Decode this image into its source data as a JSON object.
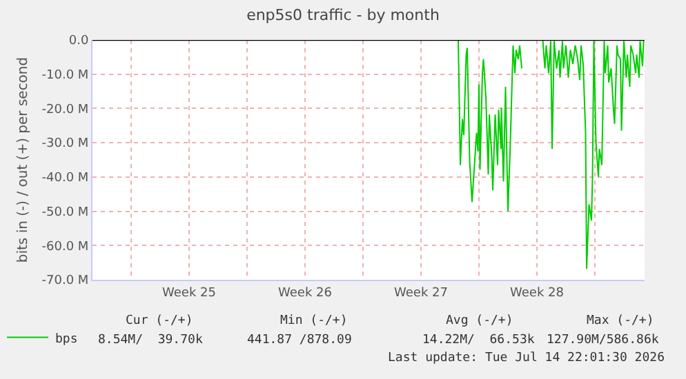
{
  "chart_data": {
    "type": "line",
    "title": "enp5s0 traffic - by month",
    "ylabel": "bits in (-) / out (+) per second",
    "x": [
      "2026-07-02T22:00",
      "2026-07-03T18:00",
      "2026-07-03T21:00",
      "2026-07-04T00:00",
      "2026-07-04T02:00",
      "2026-07-04T05:30",
      "2026-07-04T07:00",
      "2026-07-04T10:30",
      "2026-07-04T14:00",
      "2026-07-04T17:30",
      "2026-07-04T20:30",
      "2026-07-04T22:30",
      "2026-07-05T00:00",
      "2026-07-05T01:30",
      "2026-07-05T05:00",
      "2026-07-05T06:30",
      "2026-07-05T10:00",
      "2026-07-05T13:30",
      "2026-07-05T15:00",
      "2026-07-05T18:30",
      "2026-07-05T20:00",
      "2026-07-05T23:30",
      "2026-07-06T03:00",
      "2026-07-06T04:30",
      "2026-07-06T08:00",
      "2026-07-06T08:30",
      "2026-07-06T11:30",
      "2026-07-06T14:30",
      "2026-07-06T16:30",
      "2026-07-06T18:00",
      "2026-07-06T21:30",
      "2026-07-07T00:30",
      "2026-07-07T01:30",
      "2026-07-07T04:00",
      "2026-07-07T06:00",
      "2026-07-07T09:00",
      "2026-07-07T11:00",
      "2026-07-07T14:00",
      "2026-07-08T03:30",
      "2026-07-08T20:30",
      "2026-07-08T23:30",
      "2026-07-09T01:30",
      "2026-07-09T05:00",
      "2026-07-09T08:00",
      "2026-07-09T10:00",
      "2026-07-09T13:00",
      "2026-07-09T16:30",
      "2026-07-09T20:00",
      "2026-07-09T21:30",
      "2026-07-10T01:00",
      "2026-07-10T02:30",
      "2026-07-10T06:00",
      "2026-07-10T09:30",
      "2026-07-10T12:30",
      "2026-07-10T16:00",
      "2026-07-10T19:30",
      "2026-07-10T23:00",
      "2026-07-11T02:00",
      "2026-07-11T04:00",
      "2026-07-11T07:00",
      "2026-07-11T10:30",
      "2026-07-11T12:00",
      "2026-07-11T15:30",
      "2026-07-11T19:00",
      "2026-07-11T20:30",
      "2026-07-11T22:30",
      "2026-07-12T01:30",
      "2026-07-12T05:00",
      "2026-07-12T06:30",
      "2026-07-12T10:00",
      "2026-07-12T13:30",
      "2026-07-12T15:00",
      "2026-07-12T18:30",
      "2026-07-12T20:00",
      "2026-07-12T23:30",
      "2026-07-13T03:00",
      "2026-07-13T04:30",
      "2026-07-13T08:00",
      "2026-07-13T09:30",
      "2026-07-13T13:00",
      "2026-07-13T14:30",
      "2026-07-13T18:00",
      "2026-07-13T21:30",
      "2026-07-13T23:00",
      "2026-07-14T02:30",
      "2026-07-14T04:00",
      "2026-07-14T07:30",
      "2026-07-14T11:00",
      "2026-07-14T12:30",
      "2026-07-14T16:00",
      "2026-07-14T17:30",
      "2026-07-14T21:00",
      "2026-07-14T22:30"
    ],
    "series": [
      {
        "name": "bps",
        "color": "#00cc00",
        "values": [
          0,
          0,
          -36.5,
          -23.1,
          -27.8,
          -4.3,
          -2.3,
          -35.2,
          -47.3,
          -36.5,
          -27.1,
          -32.5,
          -13.0,
          -37.9,
          -9.7,
          -5.6,
          -16.4,
          -39.2,
          -21.8,
          -33.9,
          -43.9,
          -21.8,
          -36.5,
          -20.4,
          -31.8,
          -19.8,
          -41.3,
          -13.7,
          -35.2,
          -50.0,
          -29.8,
          -8.3,
          -1.6,
          -9.7,
          -2.9,
          -5.6,
          -1.6,
          -8.3,
          null,
          0,
          -8.3,
          -1.6,
          -9.7,
          -0.3,
          -31.8,
          -0.3,
          -8.3,
          -3.0,
          -11.0,
          -0.3,
          -8.3,
          -1.6,
          -11.0,
          -2.9,
          -7.0,
          -1.6,
          -5.6,
          -11.7,
          -1.6,
          -7.0,
          -27.1,
          -66.8,
          -48.0,
          -52.7,
          -40.3,
          -0.3,
          -29.8,
          -39.9,
          -31.8,
          -36.5,
          -0.3,
          -9.7,
          -1.6,
          -12.4,
          -8.3,
          -20.4,
          -24.5,
          -1.6,
          -4.3,
          -5.6,
          -26.5,
          -0.3,
          -11.0,
          -4.3,
          -13.7,
          -1.6,
          -4.3,
          -9.7,
          -4.3,
          -11.0,
          -0.3,
          -7.7,
          -0.3
        ]
      }
    ],
    "xlim": [
      "2026-06-11T16:00",
      "2026-07-15T00:00"
    ],
    "xticks": [
      {
        "value": "2026-06-14",
        "label": null
      },
      {
        "value": "2026-06-17T12:00",
        "label": "Week 25"
      },
      {
        "value": "2026-06-21",
        "label": null
      },
      {
        "value": "2026-06-24T12:00",
        "label": "Week 26"
      },
      {
        "value": "2026-06-28",
        "label": null
      },
      {
        "value": "2026-07-01T12:00",
        "label": "Week 27"
      },
      {
        "value": "2026-07-05",
        "label": null
      },
      {
        "value": "2026-07-08T12:00",
        "label": "Week 28"
      },
      {
        "value": "2026-07-12",
        "label": null
      }
    ],
    "ylim": [
      -70,
      0
    ],
    "yticks": [
      {
        "value": 0,
        "label": "0.0"
      },
      {
        "value": -10,
        "label": "-10.0 M"
      },
      {
        "value": -20,
        "label": "-20.0 M"
      },
      {
        "value": -30,
        "label": "-30.0 M"
      },
      {
        "value": -40,
        "label": "-40.0 M"
      },
      {
        "value": -50,
        "label": "-50.0 M"
      },
      {
        "value": -60,
        "label": "-60.0 M"
      },
      {
        "value": -70,
        "label": "-70.0 M"
      }
    ],
    "ref_lines": [
      {
        "axis": "y",
        "value": 0,
        "label": null,
        "color": "#000000"
      }
    ],
    "grid": true,
    "legend": "bottom",
    "marker": "none",
    "line_style": "solid",
    "annotations": [
      "Cur (-/+)",
      "Min (-/+)",
      "Avg (-/+)",
      "Max (-/+)",
      "8.54M/  39.70k",
      "441.87 /878.09",
      "14.22M/  66.53k",
      "127.90M/586.86k",
      "Last update: Tue Jul 14 22:01:30 2026"
    ]
  }
}
